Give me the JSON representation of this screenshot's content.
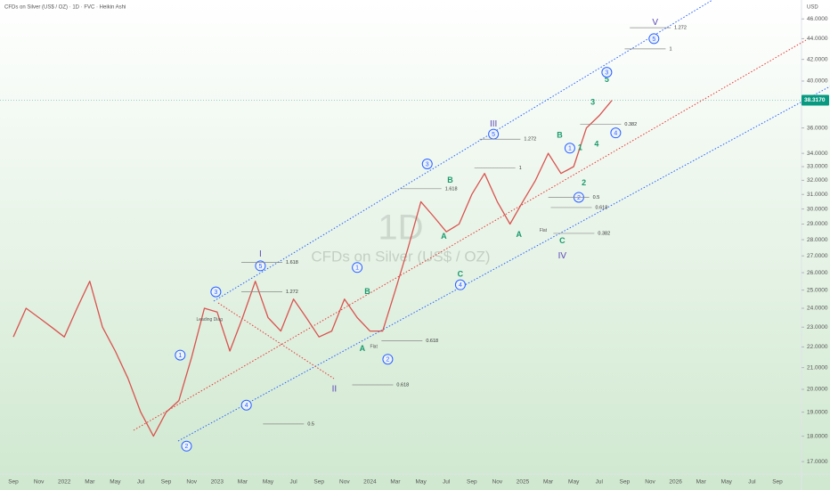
{
  "chart_data": {
    "type": "line",
    "title": "CFDs on Silver (US$ / OZ) · 1D · FVC · Heikin Ashi",
    "watermark": "1D",
    "watermark_subtitle": "CFDs on Silver (US$ / OZ)",
    "y_axis_unit": "USD",
    "log": true,
    "grid": false,
    "color": "#d9534f",
    "categories": [
      "Sep",
      null,
      "Nov",
      null,
      "2022",
      null,
      "Mar",
      null,
      "May",
      null,
      "Jul",
      null,
      "Sep",
      null,
      "Nov",
      null,
      "2023",
      null,
      "Mar",
      null,
      "May",
      null,
      "Jul",
      null,
      "Sep",
      null,
      "Nov",
      null,
      "2024",
      null,
      "Mar",
      null,
      "May",
      null,
      "Jul",
      null,
      "Sep",
      null,
      "Nov",
      null,
      "2025",
      null,
      "Mar",
      null,
      "May",
      null,
      "Jul",
      null,
      "Sep",
      null,
      "Nov",
      null,
      "2026",
      null,
      "Mar",
      null,
      "May",
      null,
      "Jul",
      null,
      "Sep"
    ],
    "values": [
      22.5,
      24,
      23.5,
      23,
      22.5,
      24,
      25.5,
      23,
      21.8,
      20.5,
      19,
      18,
      19,
      19.5,
      21.5,
      24,
      23.8,
      21.8,
      23.5,
      25.5,
      23.5,
      22.8,
      24.5,
      23.5,
      22.5,
      22.8,
      24.5,
      23.5,
      22.8,
      22.8,
      25,
      27.5,
      30.5,
      29.5,
      28.5,
      29,
      31,
      32.5,
      30.5,
      29,
      30.5,
      32,
      34,
      32.5,
      33,
      36,
      37,
      38.3,
      null,
      null,
      null,
      null,
      null,
      null,
      null,
      null,
      null,
      null,
      null,
      null,
      null
    ],
    "ylim": [
      16.6,
      48
    ],
    "yticks": [
      {
        "value": 17,
        "label": "17.0000"
      },
      {
        "value": 18,
        "label": "18.0000"
      },
      {
        "value": 19,
        "label": "19.0000"
      },
      {
        "value": 20,
        "label": "20.0000"
      },
      {
        "value": 21,
        "label": "21.0000"
      },
      {
        "value": 22,
        "label": "22.0000"
      },
      {
        "value": 23,
        "label": "23.0000"
      },
      {
        "value": 24,
        "label": "24.0000"
      },
      {
        "value": 25,
        "label": "25.0000"
      },
      {
        "value": 26,
        "label": "26.0000"
      },
      {
        "value": 27,
        "label": "27.0000"
      },
      {
        "value": 28,
        "label": "28.0000"
      },
      {
        "value": 29,
        "label": "29.0000"
      },
      {
        "value": 30,
        "label": "30.0000"
      },
      {
        "value": 31,
        "label": "31.0000"
      },
      {
        "value": 32,
        "label": "32.0000"
      },
      {
        "value": 33,
        "label": "33.0000"
      },
      {
        "value": 34,
        "label": "34.0000"
      },
      {
        "value": 36,
        "label": "36.0000"
      },
      {
        "value": 40,
        "label": "40.0000"
      },
      {
        "value": 42,
        "label": "42.0000"
      },
      {
        "value": 44,
        "label": "44.0000"
      },
      {
        "value": 46,
        "label": "46.0000"
      }
    ],
    "last_price": {
      "value": 38.317,
      "label": "38.3170"
    },
    "last_price_color": "#089981",
    "wave_color": "#1a9a6c",
    "wave_labels": [
      {
        "text": "5",
        "x": 46.6,
        "y": 40.1
      },
      {
        "text": "3",
        "x": 45.5,
        "y": 38.1
      },
      {
        "text": "B",
        "x": 42.9,
        "y": 35.4
      },
      {
        "text": "1",
        "x": 44.5,
        "y": 34.4
      },
      {
        "text": "4",
        "x": 45.8,
        "y": 34.7
      },
      {
        "text": "B",
        "x": 34.3,
        "y": 32.0
      },
      {
        "text": "2",
        "x": 44.8,
        "y": 31.8
      },
      {
        "text": "A",
        "x": 33.8,
        "y": 28.2
      },
      {
        "text": "A",
        "x": 39.7,
        "y": 28.3
      },
      {
        "text": "C",
        "x": 43.1,
        "y": 27.9
      },
      {
        "text": "C",
        "x": 35.1,
        "y": 25.9
      },
      {
        "text": "B",
        "x": 27.8,
        "y": 24.9
      },
      {
        "text": "A",
        "x": 27.4,
        "y": 21.9
      }
    ],
    "degree_color": "#5b47b8",
    "degree_labels": [
      {
        "text": "V",
        "x": 50.4,
        "y": 45.6
      },
      {
        "text": "III",
        "x": 37.7,
        "y": 36.3
      },
      {
        "text": "IV",
        "x": 43.1,
        "y": 27.0
      },
      {
        "text": "I",
        "x": 19.4,
        "y": 27.1
      },
      {
        "text": "II",
        "x": 25.2,
        "y": 20.0
      }
    ],
    "circle_color": "#2962ff",
    "circled_labels": [
      {
        "text": "5",
        "x": 50.3,
        "y": 44.0
      },
      {
        "text": "3",
        "x": 46.6,
        "y": 40.8
      },
      {
        "text": "4",
        "x": 47.3,
        "y": 35.6
      },
      {
        "text": "5",
        "x": 37.7,
        "y": 35.5
      },
      {
        "text": "1",
        "x": 43.7,
        "y": 34.4
      },
      {
        "text": "3",
        "x": 32.5,
        "y": 33.2
      },
      {
        "text": "2",
        "x": 44.4,
        "y": 30.8
      },
      {
        "text": "4",
        "x": 35.1,
        "y": 25.3
      },
      {
        "text": "5",
        "x": 19.4,
        "y": 26.4
      },
      {
        "text": "1",
        "x": 27.0,
        "y": 26.3
      },
      {
        "text": "3",
        "x": 15.9,
        "y": 24.9
      },
      {
        "text": "2",
        "x": 29.4,
        "y": 21.4
      },
      {
        "text": "1",
        "x": 13.1,
        "y": 21.6
      },
      {
        "text": "4",
        "x": 18.3,
        "y": 19.3
      },
      {
        "text": "2",
        "x": 13.6,
        "y": 17.6
      }
    ],
    "fib_color": "#333333",
    "fib_levels": [
      {
        "text": "1.272",
        "x": 51.9,
        "y": 45.1
      },
      {
        "text": "1",
        "x": 51.5,
        "y": 43.0
      },
      {
        "text": "0.382",
        "x": 48.0,
        "y": 36.3
      },
      {
        "text": "1.272",
        "x": 40.1,
        "y": 35.1
      },
      {
        "text": "1",
        "x": 39.7,
        "y": 32.9
      },
      {
        "text": "1.618",
        "x": 33.9,
        "y": 31.4
      },
      {
        "text": "0.5",
        "x": 45.5,
        "y": 30.8
      },
      {
        "text": "0.618",
        "x": 45.7,
        "y": 30.1
      },
      {
        "text": "0.382",
        "x": 45.9,
        "y": 28.4
      },
      {
        "text": "1.618",
        "x": 21.4,
        "y": 26.6
      },
      {
        "text": "1.272",
        "x": 21.4,
        "y": 24.9
      },
      {
        "text": "0.618",
        "x": 32.4,
        "y": 22.3
      },
      {
        "text": "0.618",
        "x": 30.1,
        "y": 20.2
      },
      {
        "text": "0.5",
        "x": 23.1,
        "y": 18.5
      }
    ],
    "notes": [
      {
        "text": "Flat",
        "x": 41.6,
        "y": 28.6
      },
      {
        "text": "Flat",
        "x": 28.3,
        "y": 22.0
      },
      {
        "text": "Leading Diag",
        "x": 15.4,
        "y": 23.4
      }
    ]
  }
}
